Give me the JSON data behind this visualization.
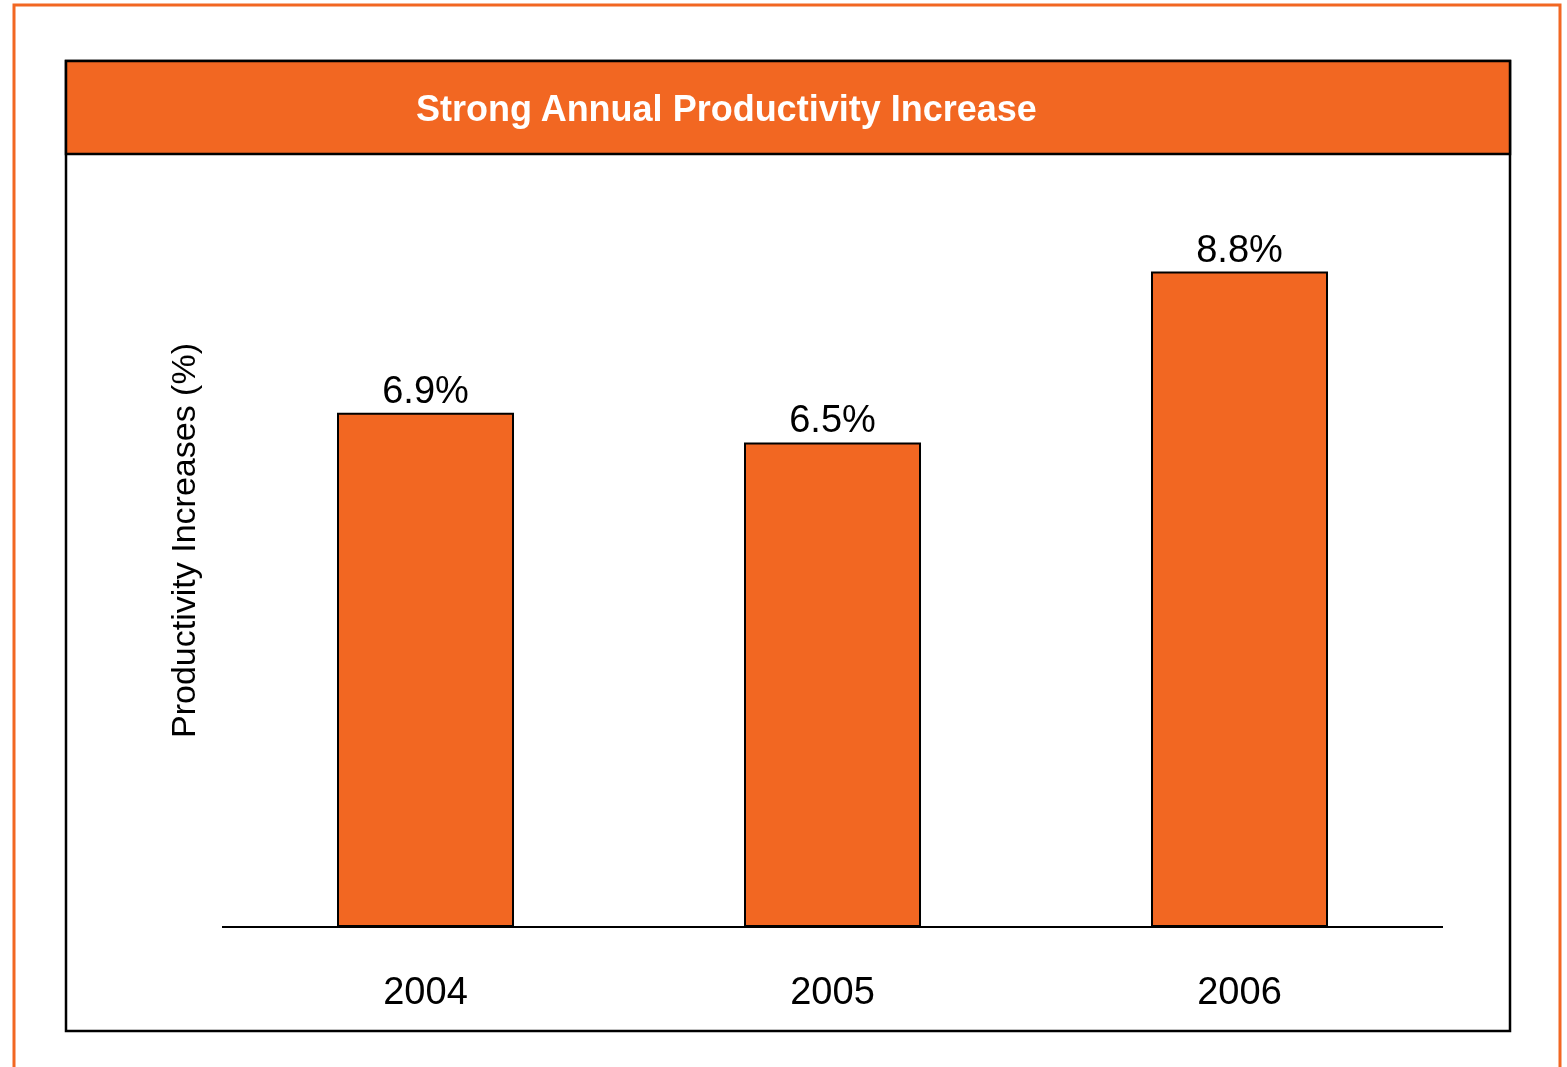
{
  "chart_data": {
    "type": "bar",
    "title": "Strong Annual Productivity Increase",
    "ylabel": "Productivity Increases (%)",
    "categories": [
      "2004",
      "2005",
      "2006"
    ],
    "values": [
      6.9,
      6.5,
      8.8
    ],
    "value_labels": [
      "6.9%",
      "6.5%",
      "8.8%"
    ],
    "color": "#f26722",
    "grid": false,
    "legend": false
  }
}
